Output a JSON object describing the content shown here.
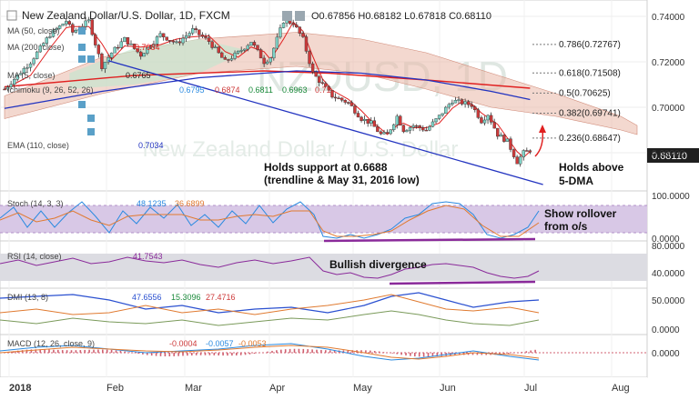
{
  "colors": {
    "bull": "#7fd3c7",
    "bear": "#cd3a3a",
    "wick": "#333333",
    "red": "#e02020",
    "blue": "#2233c0",
    "green": "#1a8a3a",
    "cloud": "#e9b8a8",
    "cloud_edge": "#d08a78",
    "cloud_green": "#c6e6cf",
    "band": "#d8c8e6",
    "band_edge": "#b290c8",
    "purple": "#8a2a9a",
    "stoch_k": "#2a8ae0",
    "stoch_d": "#e07a30",
    "dmi_plus": "#2a50d0",
    "dmi_minus": "#e07a30",
    "adx": "#7a9a5a",
    "macd": "#2a8ae0",
    "signal": "#e07a30",
    "hist": "#d06070",
    "price_tag": "#1f1f1f",
    "axis_text": "#333333",
    "panel_border": "#9a9a9a"
  },
  "header": {
    "symbol": "New Zealand Dollar/U.S. Dollar, 1D, FXCM",
    "ohlc": "O0.67856 H0.68182 L0.67818 C0.68110"
  },
  "watermark": {
    "line1": "NZDUSD, 1D",
    "line2": "New Zealand Dollar / U.S. Dollar"
  },
  "price_tag": "0.68110",
  "indicator_labels": {
    "ma50": {
      "name": "MA (50, close)",
      "value": ""
    },
    "ma200": {
      "name": "MA (200, close)",
      "value": "0.7084"
    },
    "ma5": {
      "name": "MA (5, close)",
      "value": "0.6765"
    },
    "ichimoku": {
      "name": "Ichimoku (9, 26, 52, 26)",
      "values": [
        "0.6795",
        "0.6874",
        "0.6811",
        "0.6963",
        "0.71"
      ]
    },
    "ema110": {
      "name": "EMA (110, close)",
      "value": "0.7034"
    }
  },
  "fib_levels": [
    {
      "label": "0.786(0.72767)",
      "value": 0.72767
    },
    {
      "label": "0.618(0.71508)",
      "value": 0.71508
    },
    {
      "label": "0.5(0.70625)",
      "value": 0.70625
    },
    {
      "label": "0.382(0.69741)",
      "value": 0.69741
    },
    {
      "label": "0.236(0.68647)",
      "value": 0.68647
    }
  ],
  "annotations": {
    "support_line1": "Holds support at 0.6688",
    "support_line2": "(trendline & May 31, 2016 low)",
    "dma_line1": "Holds above",
    "dma_line2": "5-DMA",
    "stoch_line1": "Show rollover",
    "stoch_line2": "from o/s",
    "rsi_note": "Bullish divergence"
  },
  "panels": {
    "stoch": {
      "label": "Stoch (14, 3, 3)",
      "k_value": "48.1235",
      "d_value": "36.6899",
      "axis": [
        "100.0000",
        "0.0000"
      ]
    },
    "rsi": {
      "label": "RSI (14, close)",
      "value": "41.7543",
      "axis": [
        "80.0000",
        "40.0000"
      ]
    },
    "dmi": {
      "label": "DMI (13, 8)",
      "plus": "47.6556",
      "minus": "15.3096",
      "adx": "27.4716",
      "axis": [
        "50.0000",
        "0.0000"
      ]
    },
    "macd": {
      "label": "MACD (12, 26, close, 9)",
      "hist": "-0.0004",
      "macd": "-0.0057",
      "signal": "-0.0053",
      "axis": [
        "0.0000"
      ]
    }
  },
  "chart_data": {
    "type": "candlestick",
    "title": "New Zealand Dollar/U.S. Dollar, 1D, FXCM",
    "x_tick_labels": [
      "2018",
      "Feb",
      "Mar",
      "Apr",
      "May",
      "Jun",
      "Jul",
      "Aug"
    ],
    "y_tick_labels": [
      "0.74000",
      "0.72000",
      "0.70000",
      "0.68000"
    ],
    "ylim": [
      0.664,
      0.744
    ],
    "grid": true,
    "close_path": [
      [
        0,
        0.708
      ],
      [
        8,
        0.72
      ],
      [
        14,
        0.732
      ],
      [
        19,
        0.738
      ],
      [
        21,
        0.733
      ],
      [
        26,
        0.738
      ],
      [
        30,
        0.718
      ],
      [
        33,
        0.724
      ],
      [
        37,
        0.73
      ],
      [
        42,
        0.723
      ],
      [
        48,
        0.732
      ],
      [
        53,
        0.728
      ],
      [
        58,
        0.734
      ],
      [
        63,
        0.729
      ],
      [
        68,
        0.72
      ],
      [
        72,
        0.724
      ],
      [
        76,
        0.729
      ],
      [
        80,
        0.72
      ],
      [
        82,
        0.722
      ],
      [
        86,
        0.738
      ],
      [
        89,
        0.737
      ],
      [
        92,
        0.73
      ],
      [
        95,
        0.715
      ],
      [
        98,
        0.71
      ],
      [
        101,
        0.705
      ],
      [
        106,
        0.702
      ],
      [
        110,
        0.695
      ],
      [
        113,
        0.693
      ],
      [
        116,
        0.688
      ],
      [
        118,
        0.688
      ],
      [
        121,
        0.696
      ],
      [
        123,
        0.69
      ],
      [
        126,
        0.692
      ],
      [
        130,
        0.69
      ],
      [
        134,
        0.696
      ],
      [
        138,
        0.703
      ],
      [
        141,
        0.702
      ],
      [
        144,
        0.701
      ],
      [
        147,
        0.694
      ],
      [
        149,
        0.697
      ],
      [
        152,
        0.688
      ],
      [
        155,
        0.685
      ],
      [
        158,
        0.676
      ],
      [
        160,
        0.68
      ],
      [
        162,
        0.6811
      ]
    ],
    "ma200_path": [
      [
        0,
        0.709
      ],
      [
        40,
        0.714
      ],
      [
        80,
        0.716
      ],
      [
        100,
        0.715
      ],
      [
        130,
        0.712
      ],
      [
        162,
        0.7084
      ]
    ],
    "ema110_path": [
      [
        0,
        0.6995
      ],
      [
        30,
        0.707
      ],
      [
        60,
        0.713
      ],
      [
        90,
        0.716
      ],
      [
        110,
        0.715
      ],
      [
        130,
        0.712
      ],
      [
        150,
        0.707
      ],
      [
        162,
        0.7034
      ]
    ],
    "trendline": {
      "x": [
        32,
        166
      ],
      "y": [
        0.7205,
        0.666
      ]
    },
    "x_max": 195
  }
}
